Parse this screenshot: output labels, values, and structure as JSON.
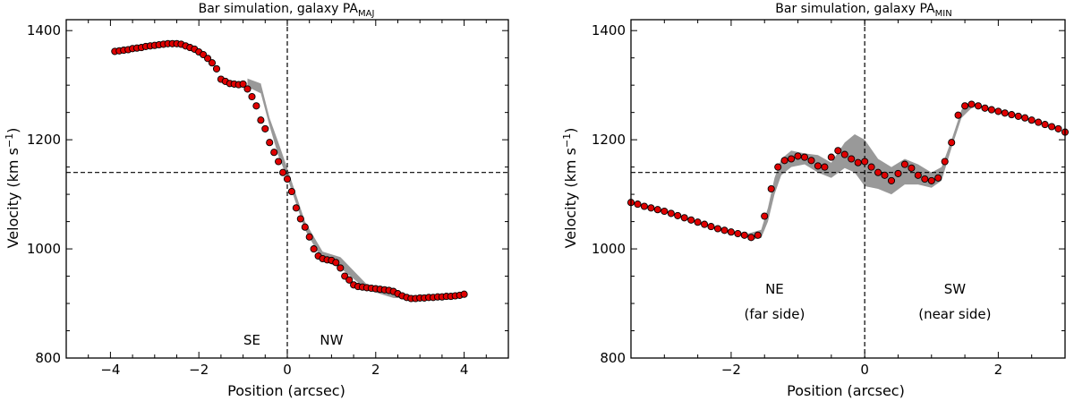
{
  "chart_data": [
    {
      "type": "scatter",
      "title": "Bar simulation, galaxy PA",
      "title_subscript": "MAJ",
      "xlabel": "Position (arcsec)",
      "ylabel": "Velocity (km s",
      "ylabel_superscript": "−1",
      "ylabel_close": ")",
      "xlim": [
        -5,
        5
      ],
      "ylim": [
        800,
        1420
      ],
      "xticks": [
        -4,
        -2,
        0,
        2,
        4
      ],
      "xtick_labels": [
        "−4",
        "−2",
        "0",
        "2",
        "4"
      ],
      "yticks": [
        800,
        1000,
        1200,
        1400
      ],
      "ytick_labels": [
        "800",
        "1000",
        "1200",
        "1400"
      ],
      "hline": 1140,
      "vline": 0,
      "point_color": "#e00000",
      "band_color": "#999999",
      "annotations": [
        {
          "text": "SE",
          "x": -0.8,
          "y": 825
        },
        {
          "text": "NW",
          "x": 1.0,
          "y": 825
        }
      ],
      "band": {
        "x": [
          -0.9,
          -0.6,
          -0.4,
          -0.2,
          0.0,
          0.4,
          0.8,
          1.2,
          1.8,
          2.4,
          3.0
        ],
        "lower": [
          1297,
          1285,
          1225,
          1170,
          1130,
          1035,
          978,
          965,
          925,
          910,
          909
        ],
        "upper": [
          1312,
          1303,
          1240,
          1195,
          1148,
          1050,
          995,
          985,
          935,
          918,
          913
        ]
      },
      "x": [
        -3.9,
        -3.8,
        -3.7,
        -3.6,
        -3.5,
        -3.4,
        -3.3,
        -3.2,
        -3.1,
        -3.0,
        -2.9,
        -2.8,
        -2.7,
        -2.6,
        -2.5,
        -2.4,
        -2.3,
        -2.2,
        -2.1,
        -2.0,
        -1.9,
        -1.8,
        -1.7,
        -1.6,
        -1.5,
        -1.4,
        -1.3,
        -1.2,
        -1.1,
        -1.0,
        -0.9,
        -0.8,
        -0.7,
        -0.6,
        -0.5,
        -0.4,
        -0.3,
        -0.2,
        -0.1,
        0.0,
        0.1,
        0.2,
        0.3,
        0.4,
        0.5,
        0.6,
        0.7,
        0.8,
        0.9,
        1.0,
        1.1,
        1.2,
        1.3,
        1.4,
        1.5,
        1.6,
        1.7,
        1.8,
        1.9,
        2.0,
        2.1,
        2.2,
        2.3,
        2.4,
        2.5,
        2.6,
        2.7,
        2.8,
        2.9,
        3.0,
        3.1,
        3.2,
        3.3,
        3.4,
        3.5,
        3.6,
        3.7,
        3.8,
        3.9,
        4.0
      ],
      "y": [
        1362,
        1363,
        1364,
        1365,
        1367,
        1368,
        1369,
        1371,
        1372,
        1373,
        1374,
        1375,
        1376,
        1376,
        1376,
        1375,
        1372,
        1369,
        1366,
        1361,
        1356,
        1349,
        1341,
        1330,
        1311,
        1307,
        1303,
        1302,
        1301,
        1302,
        1293,
        1279,
        1262,
        1236,
        1220,
        1195,
        1177,
        1160,
        1140,
        1128,
        1105,
        1075,
        1055,
        1040,
        1022,
        1000,
        987,
        982,
        980,
        979,
        975,
        965,
        950,
        943,
        934,
        931,
        930,
        929,
        928,
        927,
        926,
        925,
        924,
        922,
        918,
        914,
        911,
        909,
        909,
        910,
        910,
        911,
        911,
        912,
        912,
        913,
        913,
        914,
        915,
        917
      ]
    },
    {
      "type": "scatter",
      "title": "Bar simulation, galaxy PA",
      "title_subscript": "MIN",
      "xlabel": "Position (arcsec)",
      "ylabel": "Velocity (km s",
      "ylabel_superscript": "−1",
      "ylabel_close": ")",
      "xlim": [
        -3.5,
        3.0
      ],
      "ylim": [
        800,
        1420
      ],
      "xticks": [
        -2,
        0,
        2
      ],
      "xtick_labels": [
        "−2",
        "0",
        "2"
      ],
      "yticks": [
        800,
        1000,
        1200,
        1400
      ],
      "ytick_labels": [
        "800",
        "1000",
        "1200",
        "1400"
      ],
      "hline": 1140,
      "vline": 0,
      "point_color": "#e00000",
      "band_color": "#999999",
      "annotations": [
        {
          "text": "NE",
          "x": -1.35,
          "y": 918
        },
        {
          "text": "(far side)",
          "x": -1.35,
          "y": 872
        },
        {
          "text": "SW",
          "x": 1.35,
          "y": 918
        },
        {
          "text": "(near side)",
          "x": 1.35,
          "y": 872
        }
      ],
      "band": {
        "x": [
          -1.75,
          -1.55,
          -1.45,
          -1.35,
          -1.25,
          -1.1,
          -0.9,
          -0.7,
          -0.5,
          -0.3,
          -0.15,
          0.0,
          0.2,
          0.4,
          0.6,
          0.8,
          1.0,
          1.15,
          1.3,
          1.45,
          1.6
        ],
        "lower": [
          1016,
          1020,
          1050,
          1100,
          1135,
          1150,
          1155,
          1140,
          1130,
          1148,
          1140,
          1115,
          1110,
          1100,
          1118,
          1118,
          1112,
          1125,
          1185,
          1240,
          1258
        ],
        "upper": [
          1028,
          1035,
          1075,
          1130,
          1165,
          1180,
          1175,
          1172,
          1158,
          1195,
          1210,
          1200,
          1165,
          1150,
          1165,
          1155,
          1140,
          1150,
          1200,
          1255,
          1272
        ]
      },
      "x": [
        -3.5,
        -3.4,
        -3.3,
        -3.2,
        -3.1,
        -3.0,
        -2.9,
        -2.8,
        -2.7,
        -2.6,
        -2.5,
        -2.4,
        -2.3,
        -2.2,
        -2.1,
        -2.0,
        -1.9,
        -1.8,
        -1.7,
        -1.6,
        -1.5,
        -1.4,
        -1.3,
        -1.2,
        -1.1,
        -1.0,
        -0.9,
        -0.8,
        -0.7,
        -0.6,
        -0.5,
        -0.4,
        -0.3,
        -0.2,
        -0.1,
        0.0,
        0.1,
        0.2,
        0.3,
        0.4,
        0.5,
        0.6,
        0.7,
        0.8,
        0.9,
        1.0,
        1.1,
        1.2,
        1.3,
        1.4,
        1.5,
        1.6,
        1.7,
        1.8,
        1.9,
        2.0,
        2.1,
        2.2,
        2.3,
        2.4,
        2.5,
        2.6,
        2.7,
        2.8,
        2.9,
        3.0
      ],
      "y": [
        1085,
        1082,
        1078,
        1075,
        1072,
        1069,
        1065,
        1061,
        1057,
        1053,
        1049,
        1045,
        1041,
        1037,
        1034,
        1031,
        1028,
        1025,
        1021,
        1025,
        1060,
        1110,
        1150,
        1162,
        1165,
        1170,
        1168,
        1162,
        1152,
        1150,
        1168,
        1180,
        1173,
        1165,
        1158,
        1160,
        1150,
        1140,
        1135,
        1125,
        1138,
        1155,
        1148,
        1135,
        1128,
        1125,
        1130,
        1160,
        1195,
        1245,
        1262,
        1265,
        1262,
        1258,
        1255,
        1252,
        1249,
        1246,
        1243,
        1240,
        1236,
        1232,
        1228,
        1224,
        1220,
        1214
      ]
    }
  ]
}
